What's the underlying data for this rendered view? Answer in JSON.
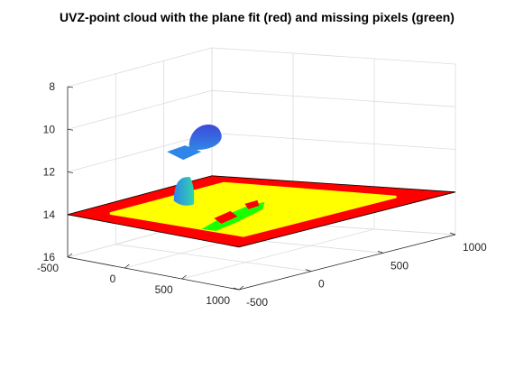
{
  "chart_data": {
    "type": "scatter",
    "title": "UVZ-point cloud with the plane fit (red) and missing pixels (green)",
    "xlabel": "",
    "ylabel": "",
    "zlabel": "",
    "xlim": [
      -500,
      1000
    ],
    "ylim": [
      -500,
      1000
    ],
    "zlim": [
      8,
      16
    ],
    "z_reversed": true,
    "grid": true,
    "x_ticks": [
      -500,
      0,
      500,
      1000
    ],
    "y_ticks": [
      -500,
      0,
      500,
      1000
    ],
    "z_ticks": [
      8,
      10,
      12,
      14,
      16
    ],
    "x_tick_labels": [
      "-500",
      "0",
      "500",
      "1000"
    ],
    "y_tick_labels": [
      "-500",
      "0",
      "500",
      "1000"
    ],
    "z_tick_labels": [
      "8",
      "10",
      "12",
      "14",
      "16"
    ],
    "colors": {
      "plane": "#ff0000",
      "missing_pixels": "#00ff00",
      "surface": "#ffff00",
      "cloud_low": "#3f49d8",
      "cloud_mid": "#2f86e8",
      "cloud_high": "#2fd6a9"
    },
    "plane": {
      "x": [
        -500,
        1000
      ],
      "y": [
        -500,
        1000
      ],
      "z": 14
    },
    "objects": [
      {
        "name": "yellow flat region",
        "x": [
          -300,
          800
        ],
        "y": [
          -300,
          800
        ],
        "z": 14
      },
      {
        "name": "hemisphere blob",
        "center_x": 600,
        "center_y": -400,
        "z_top": 8.7,
        "z_bottom": 10
      },
      {
        "name": "flat blue patch",
        "center_x": 350,
        "center_y": -350,
        "z": 10.5
      },
      {
        "name": "small cyan cone",
        "center_x": 150,
        "center_y": -150,
        "z_top": 12,
        "z_bottom": 13.2
      },
      {
        "name": "missing pixel cluster",
        "center_x": 300,
        "center_y": 100,
        "z": 14
      }
    ]
  }
}
